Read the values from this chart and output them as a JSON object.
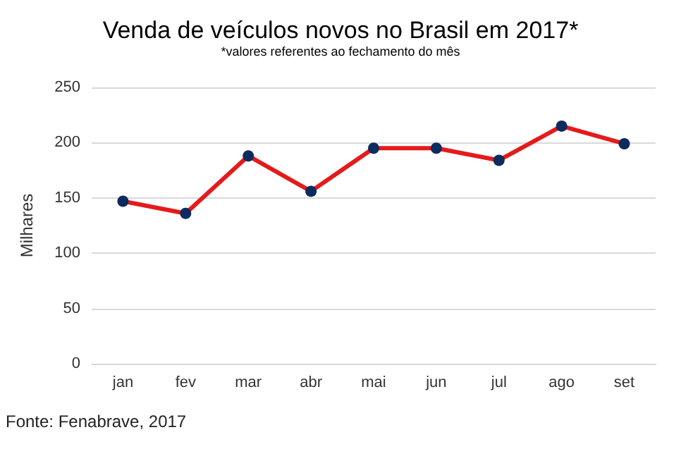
{
  "chart_data": {
    "type": "line",
    "title": "Venda de veículos novos no Brasil em 2017*",
    "subtitle": "*valores referentes ao fechamento do mês",
    "ylabel": "Milhares",
    "annotations": [
      "Fonte: Fenabrave, 2017"
    ],
    "categories": [
      "jan",
      "fev",
      "mar",
      "abr",
      "mai",
      "jun",
      "jul",
      "ago",
      "set"
    ],
    "series": [
      {
        "color": "#e51a1a",
        "values": [
          147,
          136,
          188,
          156,
          195,
          195,
          184,
          215,
          199
        ]
      }
    ],
    "ylim": [
      0,
      250
    ],
    "yticks": [
      0,
      50,
      100,
      150,
      200,
      250
    ],
    "grid": "y",
    "marker": "circle",
    "line_style": "solid"
  }
}
